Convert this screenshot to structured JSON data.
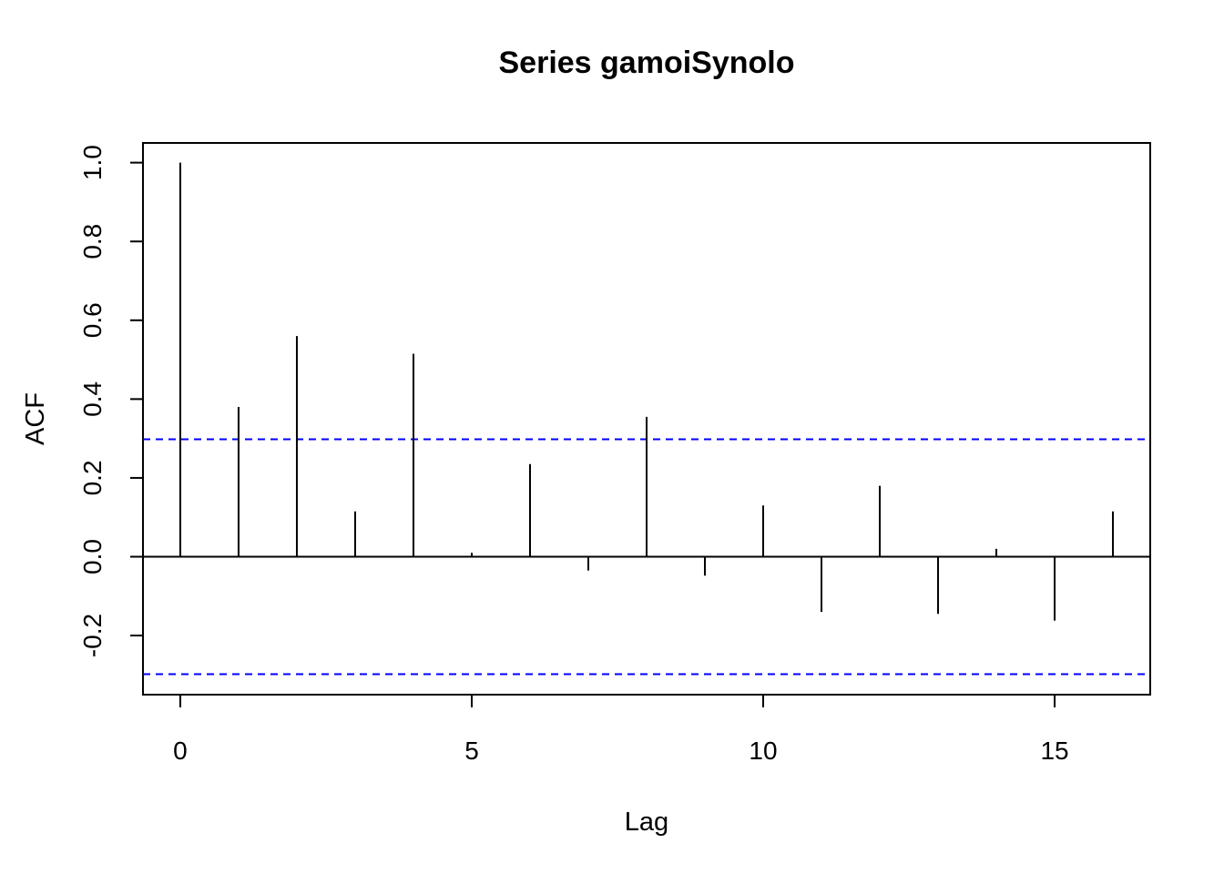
{
  "chart_data": {
    "type": "bar",
    "title": "Series  gamoiSynolo",
    "xlabel": "Lag",
    "ylabel": "ACF",
    "x": [
      0,
      1,
      2,
      3,
      4,
      5,
      6,
      7,
      8,
      9,
      10,
      11,
      12,
      13,
      14,
      15,
      16
    ],
    "values": [
      1.0,
      0.38,
      0.56,
      0.115,
      0.515,
      0.01,
      0.235,
      -0.035,
      0.355,
      -0.048,
      0.13,
      -0.14,
      0.18,
      -0.145,
      0.02,
      -0.162,
      0.115
    ],
    "xlim": [
      -0.64,
      16.64
    ],
    "ylim": [
      -0.35,
      1.05
    ],
    "xticks": [
      "0",
      "5",
      "10",
      "15"
    ],
    "yticks": [
      "-0.2",
      "0.0",
      "0.2",
      "0.4",
      "0.6",
      "0.8",
      "1.0"
    ],
    "confidence_bound": 0.298,
    "colors": {
      "stems": "#000000",
      "confidence": "#0000ff"
    },
    "grid": false,
    "legend": "none"
  }
}
